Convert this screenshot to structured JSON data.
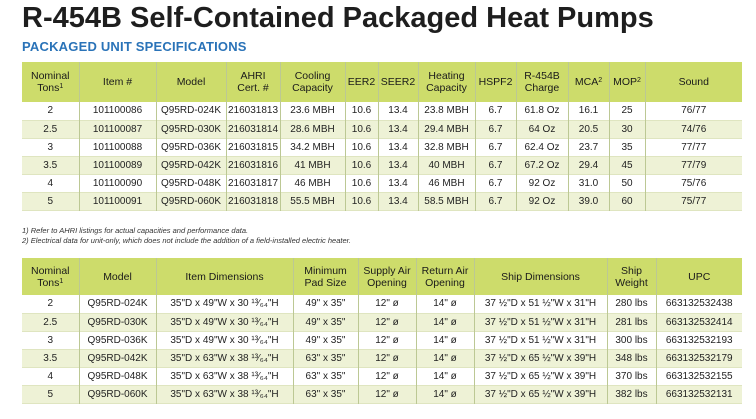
{
  "title": "R-454B Self-Contained Packaged Heat Pumps",
  "subtitle": "PACKAGED UNIT SPECIFICATIONS",
  "spec_table": {
    "headers": [
      {
        "line1": "Nominal",
        "line2": "Tons",
        "sup": "1"
      },
      {
        "line1": "Item #",
        "line2": "",
        "sup": ""
      },
      {
        "line1": "Model",
        "line2": "",
        "sup": ""
      },
      {
        "line1": "AHRI",
        "line2": "Cert. #",
        "sup": ""
      },
      {
        "line1": "Cooling",
        "line2": "Capacity",
        "sup": ""
      },
      {
        "line1": "EER2",
        "line2": "",
        "sup": ""
      },
      {
        "line1": "SEER2",
        "line2": "",
        "sup": ""
      },
      {
        "line1": "Heating",
        "line2": "Capacity",
        "sup": ""
      },
      {
        "line1": "HSPF2",
        "line2": "",
        "sup": ""
      },
      {
        "line1": "R-454B",
        "line2": "Charge",
        "sup": ""
      },
      {
        "line1": "MCA",
        "line2": "",
        "sup": "2"
      },
      {
        "line1": "MOP",
        "line2": "",
        "sup": "2"
      },
      {
        "line1": "Sound",
        "line2": "",
        "sup": ""
      }
    ],
    "rows": [
      [
        "2",
        "101100086",
        "Q95RD-024K",
        "216031813",
        "23.6 MBH",
        "10.6",
        "13.4",
        "23.8 MBH",
        "6.7",
        "61.8 Oz",
        "16.1",
        "25",
        "76/77"
      ],
      [
        "2.5",
        "101100087",
        "Q95RD-030K",
        "216031814",
        "28.6 MBH",
        "10.6",
        "13.4",
        "29.4 MBH",
        "6.7",
        "64 Oz",
        "20.5",
        "30",
        "74/76"
      ],
      [
        "3",
        "101100088",
        "Q95RD-036K",
        "216031815",
        "34.2 MBH",
        "10.6",
        "13.4",
        "32.8 MBH",
        "6.7",
        "62.4 Oz",
        "23.7",
        "35",
        "77/77"
      ],
      [
        "3.5",
        "101100089",
        "Q95RD-042K",
        "216031816",
        "41 MBH",
        "10.6",
        "13.4",
        "40 MBH",
        "6.7",
        "67.2 Oz",
        "29.4",
        "45",
        "77/79"
      ],
      [
        "4",
        "101100090",
        "Q95RD-048K",
        "216031817",
        "46 MBH",
        "10.6",
        "13.4",
        "46 MBH",
        "6.7",
        "92 Oz",
        "31.0",
        "50",
        "75/76"
      ],
      [
        "5",
        "101100091",
        "Q95RD-060K",
        "216031818",
        "55.5 MBH",
        "10.6",
        "13.4",
        "58.5 MBH",
        "6.7",
        "92 Oz",
        "39.0",
        "60",
        "75/77"
      ]
    ]
  },
  "notes": [
    "1) Refer to AHRI listings for actual capacities and performance data.",
    "2) Electrical data for unit-only, which does not include the addition of a field-installed electric heater."
  ],
  "dim_table": {
    "headers": [
      {
        "line1": "Nominal",
        "line2": "Tons",
        "sup": "1"
      },
      {
        "line1": "Model",
        "line2": "",
        "sup": ""
      },
      {
        "line1": "Item Dimensions",
        "line2": "",
        "sup": ""
      },
      {
        "line1": "Minimum",
        "line2": "Pad Size",
        "sup": ""
      },
      {
        "line1": "Supply Air",
        "line2": "Opening",
        "sup": ""
      },
      {
        "line1": "Return Air",
        "line2": "Opening",
        "sup": ""
      },
      {
        "line1": "Ship Dimensions",
        "line2": "",
        "sup": ""
      },
      {
        "line1": "Ship",
        "line2": "Weight",
        "sup": ""
      },
      {
        "line1": "UPC",
        "line2": "",
        "sup": ""
      }
    ],
    "rows": [
      [
        "2",
        "Q95RD-024K",
        "35\"D x 49\"W x 30 ¹³⁄₆₄\"H",
        "49\" x 35\"",
        "12\" ø",
        "14\" ø",
        "37 ½\"D x 51 ½\"W x 31\"H",
        "280 lbs",
        "663132532438"
      ],
      [
        "2.5",
        "Q95RD-030K",
        "35\"D x 49\"W x 30 ¹³⁄₆₄\"H",
        "49\" x 35\"",
        "12\" ø",
        "14\" ø",
        "37 ½\"D x 51 ½\"W x 31\"H",
        "281 lbs",
        "663132532414"
      ],
      [
        "3",
        "Q95RD-036K",
        "35\"D x 49\"W x 30 ¹³⁄₆₄\"H",
        "49\" x 35\"",
        "12\" ø",
        "14\" ø",
        "37 ½\"D x 51 ½\"W x 31\"H",
        "300 lbs",
        "663132532193"
      ],
      [
        "3.5",
        "Q95RD-042K",
        "35\"D x 63\"W x 38 ¹³⁄₆₄\"H",
        "63\" x 35\"",
        "12\" ø",
        "14\" ø",
        "37 ½\"D x 65 ½\"W x 39\"H",
        "348 lbs",
        "663132532179"
      ],
      [
        "4",
        "Q95RD-048K",
        "35\"D x 63\"W x 38 ¹³⁄₆₄\"H",
        "63\" x 35\"",
        "12\" ø",
        "14\" ø",
        "37 ½\"D x 65 ½\"W x 39\"H",
        "370 lbs",
        "663132532155"
      ],
      [
        "5",
        "Q95RD-060K",
        "35\"D x 63\"W x 38 ¹³⁄₆₄\"H",
        "63\" x 35\"",
        "12\" ø",
        "14\" ø",
        "37 ½\"D x 65 ½\"W x 39\"H",
        "382 lbs",
        "663132532131"
      ]
    ]
  },
  "colors": {
    "header_bg": "#cddc6b",
    "stripe_bg": "#eef2d6",
    "subtitle": "#2a73b8"
  }
}
